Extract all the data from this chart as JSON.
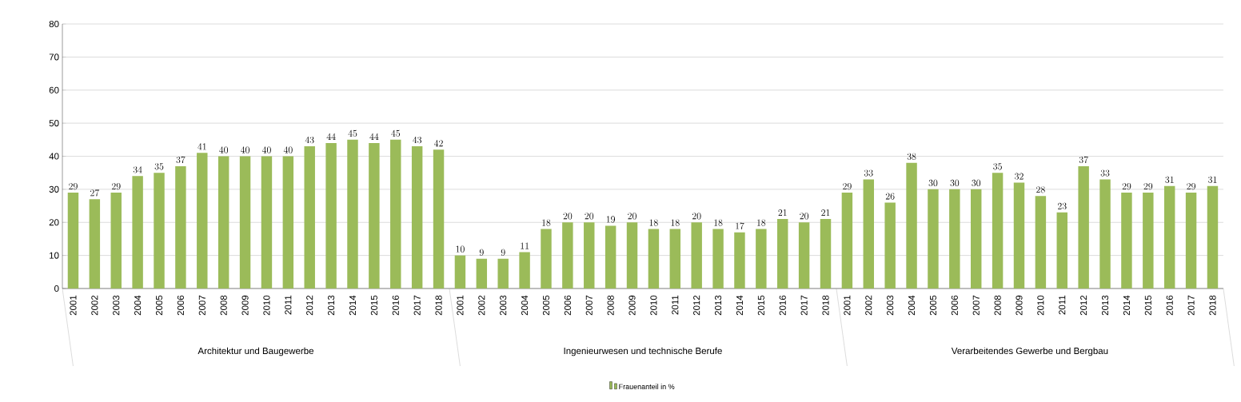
{
  "chart_data": {
    "type": "bar",
    "categories": [
      "2001",
      "2002",
      "2003",
      "2004",
      "2005",
      "2006",
      "2007",
      "2008",
      "2009",
      "2010",
      "2011",
      "2012",
      "2013",
      "2014",
      "2015",
      "2016",
      "2017",
      "2018",
      "2001",
      "2002",
      "2003",
      "2004",
      "2005",
      "2006",
      "2007",
      "2008",
      "2009",
      "2010",
      "2011",
      "2012",
      "2013",
      "2014",
      "2015",
      "2016",
      "2017",
      "2018",
      "2001",
      "2002",
      "2003",
      "2004",
      "2005",
      "2006",
      "2007",
      "2008",
      "2009",
      "2010",
      "2011",
      "2012",
      "2013",
      "2014",
      "2015",
      "2016",
      "2017",
      "2018"
    ],
    "series": [
      {
        "name": "Frauenanteil in %",
        "color": "#9bbb59",
        "values": [
          29,
          27,
          29,
          34,
          35,
          37,
          41,
          40,
          40,
          40,
          40,
          43,
          44,
          45,
          44,
          45,
          43,
          42,
          10,
          9,
          9,
          11,
          18,
          20,
          20,
          19,
          20,
          18,
          18,
          20,
          18,
          17,
          18,
          21,
          20,
          21,
          29,
          33,
          26,
          38,
          30,
          30,
          30,
          35,
          32,
          28,
          23,
          37,
          33,
          29,
          29,
          31,
          29,
          31
        ]
      }
    ],
    "annotations": [
      "Architektur und Baugewerbe",
      "Ingenieurwesen und technische Berufe",
      "Verarbeitendes Gewerbe und Bergbau"
    ],
    "ylim": [
      0,
      80
    ],
    "yticks": [
      0,
      10,
      20,
      30,
      40,
      50,
      60,
      70,
      80
    ],
    "grid": "y",
    "legend": "bottom",
    "data_labels": true
  }
}
